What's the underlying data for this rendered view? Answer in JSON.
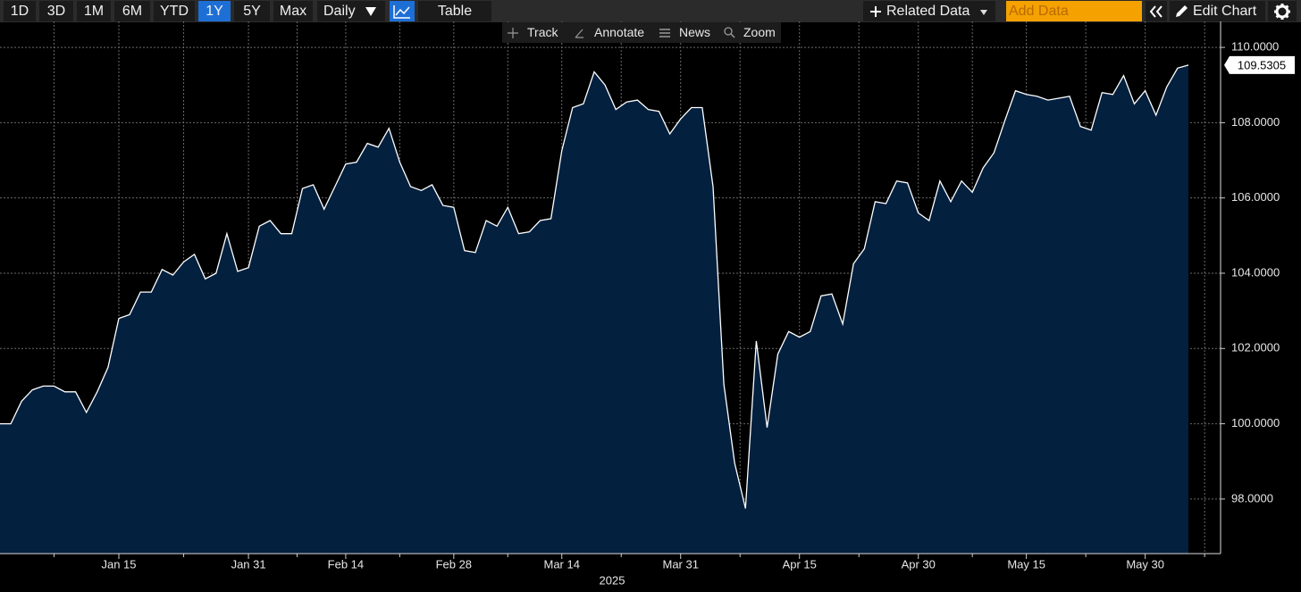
{
  "toolbar": {
    "ranges": [
      {
        "label": "1D"
      },
      {
        "label": "3D"
      },
      {
        "label": "1M"
      },
      {
        "label": "6M"
      },
      {
        "label": "YTD"
      },
      {
        "label": "1Y",
        "active": true
      },
      {
        "label": "5Y"
      },
      {
        "label": "Max"
      }
    ],
    "frequency": "Daily",
    "view": "Table",
    "related": "Related Data",
    "add_data_placeholder": "Add Data",
    "edit": "Edit Chart"
  },
  "chart_tools": [
    "Track",
    "Annotate",
    "News",
    "Zoom"
  ],
  "chart_data": {
    "type": "area",
    "xlabel": "2025",
    "categories": [
      null,
      null,
      null,
      null,
      null,
      null,
      null,
      null,
      null,
      null,
      null,
      "Jan 15",
      null,
      null,
      null,
      null,
      null,
      null,
      null,
      null,
      null,
      null,
      null,
      "Jan 31",
      null,
      null,
      null,
      null,
      null,
      null,
      null,
      null,
      "Feb 14",
      null,
      null,
      null,
      null,
      null,
      null,
      null,
      null,
      null,
      "Feb 28",
      null,
      null,
      null,
      null,
      null,
      null,
      null,
      null,
      null,
      "Mar 14",
      null,
      null,
      null,
      null,
      null,
      null,
      null,
      null,
      null,
      null,
      "Mar 31",
      null,
      null,
      null,
      null,
      null,
      null,
      null,
      null,
      null,
      null,
      "Apr 15",
      null,
      null,
      null,
      null,
      null,
      null,
      null,
      null,
      null,
      null,
      "Apr 30",
      null,
      null,
      null,
      null,
      null,
      null,
      null,
      null,
      null,
      "May 15",
      null,
      null,
      null,
      null,
      null,
      null,
      null,
      null,
      null,
      null,
      "May 30",
      null,
      null,
      null,
      null
    ],
    "series": [
      {
        "color": "#ffffff",
        "fill": "#03203f",
        "values": [
          100.0,
          100.0,
          100.6,
          100.9,
          101.0,
          101.0,
          100.85,
          100.85,
          100.3,
          100.85,
          101.5,
          102.8,
          102.9,
          103.5,
          103.5,
          104.1,
          103.95,
          104.3,
          104.5,
          103.85,
          104.0,
          105.05,
          104.05,
          104.15,
          105.25,
          105.4,
          105.05,
          105.05,
          106.25,
          106.35,
          105.7,
          106.3,
          106.9,
          106.95,
          107.45,
          107.35,
          107.85,
          106.95,
          106.3,
          106.2,
          106.35,
          105.8,
          105.75,
          104.6,
          104.55,
          105.4,
          105.25,
          105.75,
          105.05,
          105.1,
          105.4,
          105.45,
          107.25,
          108.4,
          108.5,
          109.35,
          109.0,
          108.35,
          108.55,
          108.6,
          108.35,
          108.3,
          107.7,
          108.1,
          108.4,
          108.4,
          106.3,
          101.05,
          98.95,
          97.75,
          102.2,
          99.9,
          101.85,
          102.45,
          102.3,
          102.45,
          103.4,
          103.45,
          102.65,
          104.25,
          104.65,
          105.9,
          105.85,
          106.45,
          106.4,
          105.6,
          105.4,
          106.45,
          105.9,
          106.45,
          106.15,
          106.8,
          107.2,
          108.05,
          108.85,
          108.75,
          108.7,
          108.6,
          108.65,
          108.7,
          107.9,
          107.8,
          108.8,
          108.75,
          109.25,
          108.5,
          108.85,
          108.2,
          108.95,
          109.45,
          109.5305
        ]
      }
    ],
    "ylim": [
      96.55,
      110.69
    ],
    "yticks": [
      {
        "value": 98,
        "label": "98.0000"
      },
      {
        "value": 100,
        "label": "100.0000"
      },
      {
        "value": 102,
        "label": "102.0000"
      },
      {
        "value": 104,
        "label": "104.0000"
      },
      {
        "value": 106,
        "label": "106.0000"
      },
      {
        "value": 108,
        "label": "108.0000"
      },
      {
        "value": 110,
        "label": "110.0000"
      }
    ],
    "grid": true,
    "last_value_label": true
  }
}
